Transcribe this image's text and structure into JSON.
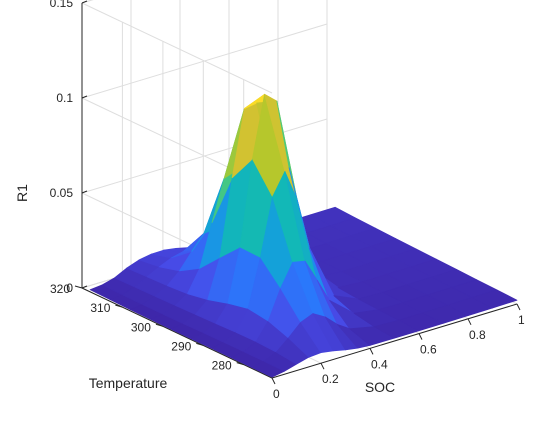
{
  "chart_data": {
    "type": "surface",
    "title": "",
    "xlabel": "SOC",
    "ylabel": "Temperature",
    "zlabel": "R1",
    "xlim": [
      0,
      1
    ],
    "ylim": [
      273,
      320
    ],
    "zlim": [
      0,
      0.15
    ],
    "x_ticks": [
      0,
      0.2,
      0.4,
      0.6,
      0.8,
      1
    ],
    "x_tick_labels": [
      "0",
      "0.2",
      "0.4",
      "0.6",
      "0.8",
      "1"
    ],
    "y_ticks": [
      280,
      290,
      300,
      310,
      320
    ],
    "y_tick_labels": [
      "280",
      "290",
      "300",
      "310",
      "320"
    ],
    "z_ticks": [
      0,
      0.05,
      0.1,
      0.15
    ],
    "z_tick_labels": [
      "0",
      "0.05",
      "0.1",
      "0.15"
    ],
    "grid": true,
    "colormap": "parula",
    "soc": [
      0,
      0.05,
      0.1,
      0.15,
      0.2,
      0.25,
      0.3,
      0.35,
      0.4,
      0.5,
      0.6,
      0.7,
      0.8,
      0.9,
      1
    ],
    "temperature": [
      273,
      278,
      283,
      288,
      293,
      298,
      303,
      308,
      313,
      318
    ],
    "r1": [
      [
        0.0005,
        0.0016,
        0.0034,
        0.0051,
        0.0056,
        0.0046,
        0.0031,
        0.0021,
        0.0016,
        0.0015,
        0.0015,
        0.0016,
        0.0017,
        0.0018,
        0.002
      ],
      [
        0.0005,
        0.0018,
        0.0047,
        0.0102,
        0.0165,
        0.0191,
        0.0154,
        0.0095,
        0.0053,
        0.0025,
        0.002,
        0.002,
        0.0021,
        0.0023,
        0.0024
      ],
      [
        0.0005,
        0.0018,
        0.0052,
        0.0141,
        0.0294,
        0.0411,
        0.0397,
        0.0277,
        0.0152,
        0.0045,
        0.0025,
        0.0023,
        0.0025,
        0.0026,
        0.0027
      ],
      [
        0.0005,
        0.0018,
        0.0051,
        0.0156,
        0.0406,
        0.0705,
        0.0819,
        0.0651,
        0.0379,
        0.0087,
        0.0031,
        0.0027,
        0.0029,
        0.003,
        0.0031
      ],
      [
        0.0005,
        0.0017,
        0.0047,
        0.0133,
        0.041,
        0.0854,
        0.1175,
        0.1119,
        0.0749,
        0.0172,
        0.0041,
        0.0032,
        0.0033,
        0.0034,
        0.0035
      ],
      [
        0.0005,
        0.0015,
        0.0044,
        0.0102,
        0.0305,
        0.0705,
        0.1049,
        0.1059,
        0.0746,
        0.0183,
        0.0042,
        0.0036,
        0.0036,
        0.0037,
        0.0038
      ],
      [
        0.0006,
        0.0014,
        0.0041,
        0.0083,
        0.0197,
        0.0418,
        0.0632,
        0.0654,
        0.0474,
        0.0126,
        0.0042,
        0.0039,
        0.004,
        0.0041,
        0.0042
      ],
      [
        0.0007,
        0.0014,
        0.0039,
        0.0075,
        0.0133,
        0.0216,
        0.0292,
        0.0296,
        0.0221,
        0.0079,
        0.0043,
        0.0043,
        0.0044,
        0.0045,
        0.0046
      ],
      [
        0.0009,
        0.0015,
        0.0037,
        0.0071,
        0.0104,
        0.0132,
        0.0148,
        0.0136,
        0.0106,
        0.0062,
        0.0049,
        0.0048,
        0.0048,
        0.0049,
        0.005
      ],
      [
        0.0011,
        0.0017,
        0.0035,
        0.0067,
        0.009,
        0.0101,
        0.0102,
        0.0092,
        0.0077,
        0.0061,
        0.0055,
        0.0054,
        0.0055,
        0.0055,
        0.0056
      ]
    ]
  }
}
